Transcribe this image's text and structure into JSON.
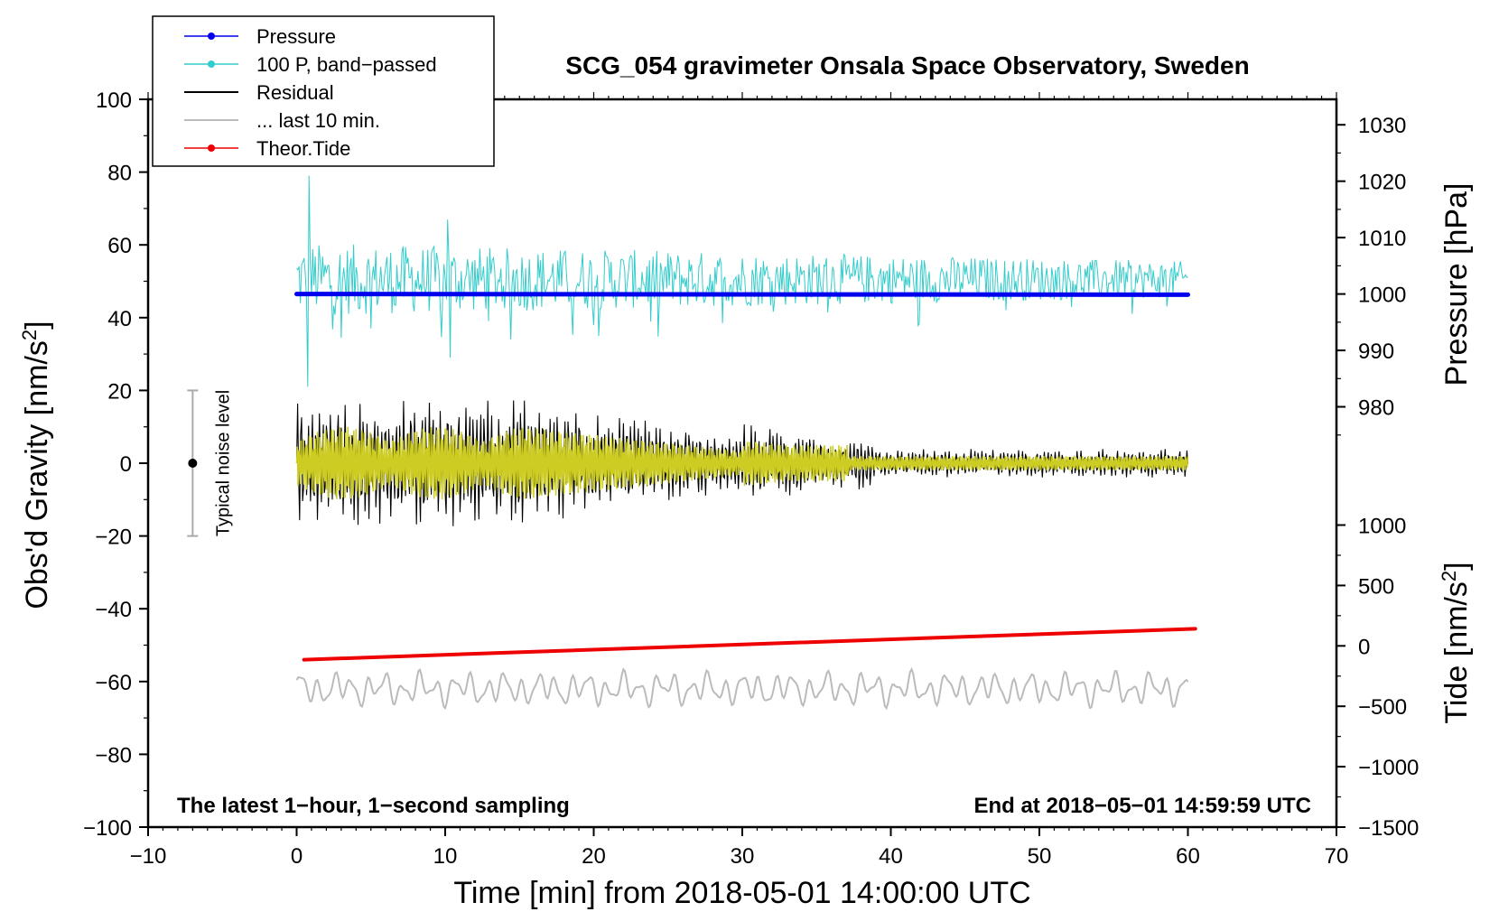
{
  "chart_data": {
    "type": "line",
    "title": "SCG_054 gravimeter Onsala Space Observatory, Sweden",
    "xlabel": "Time [min] from 2018-05-01 14:00:00 UTC",
    "ylabel_left_prefix": "Obs'd Gravity [nm/s",
    "ylabel_left_sup": "2",
    "ylabel_left_suffix": "]",
    "ylabel_right_top": "Pressure [hPa]",
    "ylabel_right_bottom_prefix": "Tide [nm/s",
    "ylabel_right_bottom_sup": "2",
    "ylabel_right_bottom_suffix": "]",
    "xlim": [
      -10,
      70
    ],
    "ylim": [
      -100,
      100
    ],
    "x_ticks": [
      "−10",
      "0",
      "10",
      "20",
      "30",
      "40",
      "50",
      "60",
      "70"
    ],
    "x_tick_values": [
      -10,
      0,
      10,
      20,
      30,
      40,
      50,
      60,
      70
    ],
    "y_ticks": [
      "100",
      "80",
      "60",
      "40",
      "20",
      "0",
      "−20",
      "−40",
      "−60",
      "−80",
      "−100"
    ],
    "y_tick_values": [
      100,
      80,
      60,
      40,
      20,
      0,
      -20,
      -40,
      -60,
      -80,
      -100
    ],
    "pressure_axis": {
      "ticks": [
        "1030",
        "1020",
        "1010",
        "1000",
        "990",
        "980"
      ],
      "tick_values": [
        1030,
        1020,
        1010,
        1000,
        990,
        980
      ],
      "map": {
        "value_a": 1000,
        "gravity_a": 46.5,
        "value_b": 980,
        "gravity_b": 15.5
      }
    },
    "tide_axis": {
      "ticks": [
        "1000",
        "500",
        "0",
        "−500",
        "−1000",
        "−1500"
      ],
      "tick_values": [
        1000,
        500,
        0,
        -500,
        -1000,
        -1500
      ],
      "map": {
        "value_a": 0,
        "gravity_a": -50.2,
        "value_b": -1500,
        "gravity_b": -100
      }
    },
    "series": [
      {
        "name": "Pressure",
        "color": "#0000ee",
        "style": "thick-line",
        "x_start": 0,
        "x_end": 60,
        "y_start": 46.5,
        "y_end": 46.3
      },
      {
        "name": "100 P, band−passed",
        "color": "#33cccc",
        "style": "noise",
        "x_start": 0,
        "x_end": 60,
        "center": 50.5,
        "amp_start": 10,
        "amp_end": 5
      },
      {
        "name": "Residual",
        "color": "#000000",
        "style": "noise",
        "x_start": 0,
        "x_end": 60,
        "center": 0,
        "amp_start": 18,
        "amp_end": 4
      },
      {
        "name": "... last 10 min.",
        "color": "#bbbbbb",
        "style": "wave",
        "x_start": 0,
        "x_end": 60,
        "center": -62,
        "amp": 5
      },
      {
        "name": "Theor.Tide",
        "color": "#ee0000",
        "style": "thick-line",
        "x_start": 0.5,
        "x_end": 60.5,
        "y_start": -54,
        "y_end": -45.5
      }
    ],
    "yellow_series": {
      "color": "#cccc22",
      "x_start": 0,
      "x_end": 60,
      "center": 0,
      "amp_start": 10,
      "amp_end": 2
    },
    "noise_bar": {
      "label": "Typical noise level",
      "x": -7,
      "y_center": 0,
      "y_low": -20,
      "y_high": 20
    },
    "legend_position": "top-left",
    "footer_left": "The latest 1−hour, 1−second sampling",
    "footer_right": "End at 2018−05−01 14:59:59 UTC"
  }
}
